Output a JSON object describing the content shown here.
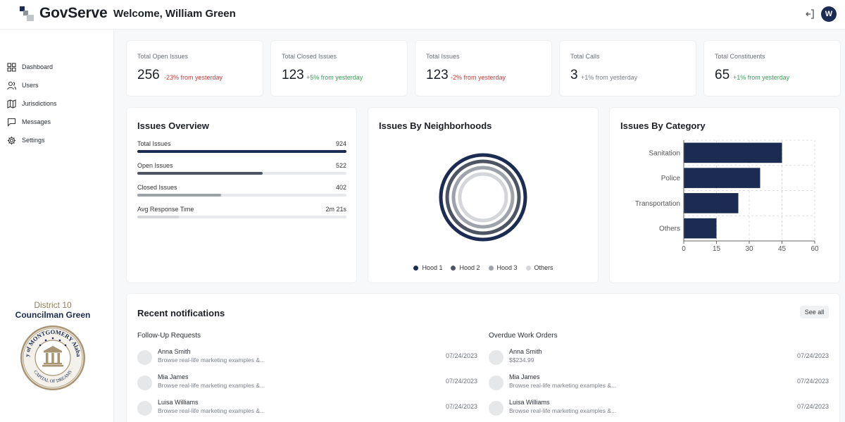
{
  "header": {
    "brand": "GovServe",
    "welcome": "Welcome, William Green",
    "avatar_initial": "W",
    "logout_icon": "logout-icon"
  },
  "sidebar": {
    "items": [
      {
        "label": "Dashboard",
        "icon": "dashboard-icon"
      },
      {
        "label": "Users",
        "icon": "users-icon"
      },
      {
        "label": "Jurisdictions",
        "icon": "map-icon"
      },
      {
        "label": "Messages",
        "icon": "message-icon"
      },
      {
        "label": "Settings",
        "icon": "gear-icon"
      }
    ],
    "district": "District 10",
    "councilman": "Councilman Green",
    "seal_text_top": "City of MONTGOMERY Alabama",
    "seal_text_bottom": "CAPITAL OF DREAMS"
  },
  "stats": [
    {
      "label": "Total Open Issues",
      "value": "256",
      "change": "-23% from yesterday",
      "trend": "neg"
    },
    {
      "label": "Total Closed Issues",
      "value": "123",
      "change": "+5% from yesterday",
      "trend": "pos"
    },
    {
      "label": "Total Issues",
      "value": "123",
      "change": "-2% from yesterday",
      "trend": "neg"
    },
    {
      "label": "Total Calls",
      "value": "3",
      "change": "+1% from yesterday",
      "trend": "neutral"
    },
    {
      "label": "Total Constituents",
      "value": "65",
      "change": "+1% from yesterday",
      "trend": "pos"
    }
  ],
  "overview": {
    "title": "Issues Overview",
    "rows": [
      {
        "label": "Total Issues",
        "value": "924",
        "fill": 1.0,
        "color": "#1b2b52"
      },
      {
        "label": "Open Issues",
        "value": "522",
        "fill": 0.6,
        "color": "#4d5562"
      },
      {
        "label": "Closed Issues",
        "value": "402",
        "fill": 0.4,
        "color": "#9ea2aa"
      },
      {
        "label": "Avg Response Time",
        "value": "2m 21s",
        "fill": 0.2,
        "color": "#d4d6da"
      }
    ]
  },
  "neighborhoods": {
    "title": "Issues By Neighborhoods",
    "legend": [
      {
        "label": "Hood 1",
        "color": "#1b2b52"
      },
      {
        "label": "Hood 2",
        "color": "#4d5562"
      },
      {
        "label": "Hood 3",
        "color": "#9ea2aa"
      },
      {
        "label": "Others",
        "color": "#d4d6da"
      }
    ]
  },
  "category": {
    "title": "Issues By Category"
  },
  "chart_data": {
    "type": "bar",
    "orientation": "horizontal",
    "categories": [
      "Sanitation",
      "Police",
      "Transportation",
      "Others"
    ],
    "values": [
      45,
      35,
      25,
      15
    ],
    "xlim": [
      0,
      60
    ],
    "xticks": [
      0,
      15,
      30,
      45,
      60
    ],
    "grid": true,
    "color": "#1b2b52"
  },
  "notifications": {
    "title": "Recent notifications",
    "see_all": "See all",
    "columns": [
      {
        "title": "Follow-Up Requests",
        "items": [
          {
            "name": "Anna Smith",
            "text": "Browse real-life marketing examples &...",
            "date": "07/24/2023"
          },
          {
            "name": "Mia James",
            "text": "Browse real-life marketing examples &...",
            "date": "07/24/2023"
          },
          {
            "name": "Luisa Williams",
            "text": "Browse real-life marketing examples &...",
            "date": "07/24/2023"
          }
        ]
      },
      {
        "title": "Overdue Work Orders",
        "items": [
          {
            "name": "Anna Smith",
            "text": "$$234.99",
            "date": "07/24/2023"
          },
          {
            "name": "Mia James",
            "text": "Browse real-life marketing examples &...",
            "date": "07/24/2023"
          },
          {
            "name": "Luisa Williams",
            "text": "Browse real-life marketing examples &...",
            "date": "07/24/2023"
          }
        ]
      }
    ]
  }
}
